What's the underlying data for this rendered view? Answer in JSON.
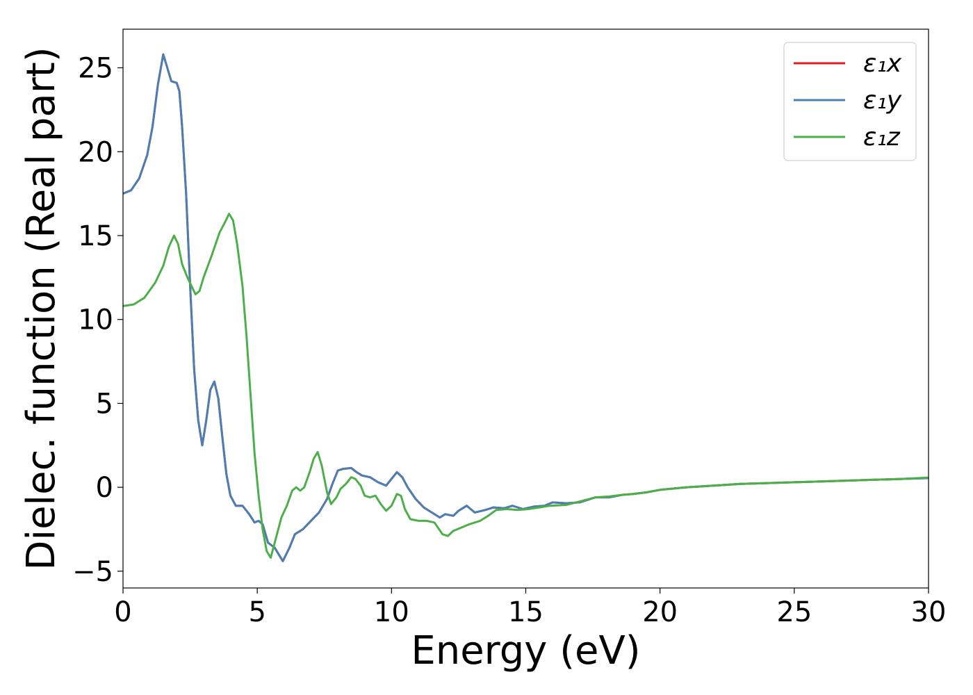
{
  "chart_data": {
    "type": "line",
    "title": "",
    "xlabel": "Energy (eV)",
    "ylabel": "Dielec. function (Real part)",
    "xlim": [
      0,
      30
    ],
    "ylim": [
      -6,
      27.3
    ],
    "xticks": [
      0,
      5,
      10,
      15,
      20,
      25,
      30
    ],
    "yticks": [
      -5,
      0,
      5,
      10,
      15,
      20,
      25
    ],
    "xtick_labels": [
      "0",
      "5",
      "10",
      "15",
      "20",
      "25",
      "30"
    ],
    "ytick_labels": [
      "−5",
      "0",
      "5",
      "10",
      "15",
      "20",
      "25"
    ],
    "grid": false,
    "legend_position": "top-right",
    "series": [
      {
        "name": "ε₁x",
        "color": "#e41a1c",
        "points": [
          [
            0,
            17.5
          ],
          [
            0.3,
            17.7
          ],
          [
            0.6,
            18.4
          ],
          [
            0.9,
            19.8
          ],
          [
            1.1,
            21.5
          ],
          [
            1.3,
            24.0
          ],
          [
            1.5,
            25.8
          ],
          [
            1.65,
            25.0
          ],
          [
            1.8,
            24.2
          ],
          [
            2.0,
            24.1
          ],
          [
            2.1,
            23.6
          ],
          [
            2.2,
            21.5
          ],
          [
            2.35,
            17.5
          ],
          [
            2.5,
            12.0
          ],
          [
            2.65,
            7.0
          ],
          [
            2.8,
            4.0
          ],
          [
            2.95,
            2.5
          ],
          [
            3.1,
            4.0
          ],
          [
            3.25,
            5.8
          ],
          [
            3.4,
            6.3
          ],
          [
            3.55,
            5.3
          ],
          [
            3.7,
            3.0
          ],
          [
            3.85,
            0.8
          ],
          [
            4.0,
            -0.5
          ],
          [
            4.2,
            -1.1
          ],
          [
            4.45,
            -1.1
          ],
          [
            4.7,
            -1.6
          ],
          [
            4.9,
            -2.1
          ],
          [
            5.05,
            -2.0
          ],
          [
            5.2,
            -2.2
          ],
          [
            5.4,
            -3.3
          ],
          [
            5.65,
            -3.6
          ],
          [
            5.95,
            -4.4
          ],
          [
            6.2,
            -3.6
          ],
          [
            6.4,
            -2.8
          ],
          [
            6.7,
            -2.5
          ],
          [
            7.0,
            -2.0
          ],
          [
            7.3,
            -1.5
          ],
          [
            7.6,
            -0.7
          ],
          [
            7.8,
            0.2
          ],
          [
            8.0,
            1.0
          ],
          [
            8.2,
            1.1
          ],
          [
            8.5,
            1.15
          ],
          [
            8.7,
            0.9
          ],
          [
            8.9,
            0.7
          ],
          [
            9.2,
            0.6
          ],
          [
            9.5,
            0.3
          ],
          [
            9.8,
            0.1
          ],
          [
            10.0,
            0.5
          ],
          [
            10.2,
            0.9
          ],
          [
            10.4,
            0.6
          ],
          [
            10.6,
            0.0
          ],
          [
            10.9,
            -0.7
          ],
          [
            11.2,
            -1.2
          ],
          [
            11.5,
            -1.5
          ],
          [
            11.8,
            -1.8
          ],
          [
            12.0,
            -1.6
          ],
          [
            12.3,
            -1.7
          ],
          [
            12.5,
            -1.4
          ],
          [
            12.8,
            -1.1
          ],
          [
            13.1,
            -1.5
          ],
          [
            13.5,
            -1.35
          ],
          [
            13.8,
            -1.2
          ],
          [
            14.2,
            -1.25
          ],
          [
            14.5,
            -1.1
          ],
          [
            14.9,
            -1.3
          ],
          [
            15.3,
            -1.15
          ],
          [
            15.7,
            -1.1
          ],
          [
            16.0,
            -0.9
          ],
          [
            16.5,
            -0.95
          ],
          [
            17.0,
            -0.9
          ],
          [
            17.6,
            -0.6
          ],
          [
            18.1,
            -0.6
          ],
          [
            18.6,
            -0.45
          ],
          [
            19.0,
            -0.4
          ],
          [
            19.5,
            -0.3
          ],
          [
            20.0,
            -0.15
          ],
          [
            21.0,
            0.0
          ],
          [
            22.0,
            0.1
          ],
          [
            23.0,
            0.2
          ],
          [
            24.0,
            0.25
          ],
          [
            25.0,
            0.3
          ],
          [
            26.0,
            0.35
          ],
          [
            27.0,
            0.4
          ],
          [
            28.0,
            0.45
          ],
          [
            29.0,
            0.5
          ],
          [
            30.0,
            0.55
          ]
        ]
      },
      {
        "name": "ε₁y",
        "color": "#4a7fb5",
        "points": [
          [
            0,
            17.5
          ],
          [
            0.3,
            17.7
          ],
          [
            0.6,
            18.4
          ],
          [
            0.9,
            19.8
          ],
          [
            1.1,
            21.5
          ],
          [
            1.3,
            24.0
          ],
          [
            1.5,
            25.8
          ],
          [
            1.65,
            25.0
          ],
          [
            1.8,
            24.2
          ],
          [
            2.0,
            24.1
          ],
          [
            2.1,
            23.6
          ],
          [
            2.2,
            21.5
          ],
          [
            2.35,
            17.5
          ],
          [
            2.5,
            12.0
          ],
          [
            2.65,
            7.0
          ],
          [
            2.8,
            4.0
          ],
          [
            2.95,
            2.5
          ],
          [
            3.1,
            4.0
          ],
          [
            3.25,
            5.8
          ],
          [
            3.4,
            6.3
          ],
          [
            3.55,
            5.3
          ],
          [
            3.7,
            3.0
          ],
          [
            3.85,
            0.8
          ],
          [
            4.0,
            -0.5
          ],
          [
            4.2,
            -1.1
          ],
          [
            4.45,
            -1.1
          ],
          [
            4.7,
            -1.6
          ],
          [
            4.9,
            -2.1
          ],
          [
            5.05,
            -2.0
          ],
          [
            5.2,
            -2.2
          ],
          [
            5.4,
            -3.3
          ],
          [
            5.65,
            -3.6
          ],
          [
            5.95,
            -4.4
          ],
          [
            6.2,
            -3.6
          ],
          [
            6.4,
            -2.8
          ],
          [
            6.7,
            -2.5
          ],
          [
            7.0,
            -2.0
          ],
          [
            7.3,
            -1.5
          ],
          [
            7.6,
            -0.7
          ],
          [
            7.8,
            0.2
          ],
          [
            8.0,
            1.0
          ],
          [
            8.2,
            1.1
          ],
          [
            8.5,
            1.15
          ],
          [
            8.7,
            0.9
          ],
          [
            8.9,
            0.7
          ],
          [
            9.2,
            0.6
          ],
          [
            9.5,
            0.3
          ],
          [
            9.8,
            0.1
          ],
          [
            10.0,
            0.5
          ],
          [
            10.2,
            0.9
          ],
          [
            10.4,
            0.6
          ],
          [
            10.6,
            0.0
          ],
          [
            10.9,
            -0.7
          ],
          [
            11.2,
            -1.2
          ],
          [
            11.5,
            -1.5
          ],
          [
            11.8,
            -1.8
          ],
          [
            12.0,
            -1.6
          ],
          [
            12.3,
            -1.7
          ],
          [
            12.5,
            -1.4
          ],
          [
            12.8,
            -1.1
          ],
          [
            13.1,
            -1.5
          ],
          [
            13.5,
            -1.35
          ],
          [
            13.8,
            -1.2
          ],
          [
            14.2,
            -1.25
          ],
          [
            14.5,
            -1.1
          ],
          [
            14.9,
            -1.3
          ],
          [
            15.3,
            -1.15
          ],
          [
            15.7,
            -1.1
          ],
          [
            16.0,
            -0.9
          ],
          [
            16.5,
            -0.95
          ],
          [
            17.0,
            -0.9
          ],
          [
            17.6,
            -0.6
          ],
          [
            18.1,
            -0.6
          ],
          [
            18.6,
            -0.45
          ],
          [
            19.0,
            -0.4
          ],
          [
            19.5,
            -0.3
          ],
          [
            20.0,
            -0.15
          ],
          [
            21.0,
            0.0
          ],
          [
            22.0,
            0.1
          ],
          [
            23.0,
            0.2
          ],
          [
            24.0,
            0.25
          ],
          [
            25.0,
            0.3
          ],
          [
            26.0,
            0.35
          ],
          [
            27.0,
            0.4
          ],
          [
            28.0,
            0.45
          ],
          [
            29.0,
            0.5
          ],
          [
            30.0,
            0.55
          ]
        ]
      },
      {
        "name": "ε₁z",
        "color": "#4daf4a",
        "points": [
          [
            0,
            10.8
          ],
          [
            0.4,
            10.9
          ],
          [
            0.8,
            11.3
          ],
          [
            1.2,
            12.2
          ],
          [
            1.5,
            13.2
          ],
          [
            1.7,
            14.3
          ],
          [
            1.9,
            15.0
          ],
          [
            2.05,
            14.5
          ],
          [
            2.2,
            13.3
          ],
          [
            2.4,
            12.5
          ],
          [
            2.55,
            12.0
          ],
          [
            2.7,
            11.5
          ],
          [
            2.85,
            11.7
          ],
          [
            3.0,
            12.5
          ],
          [
            3.3,
            13.8
          ],
          [
            3.6,
            15.2
          ],
          [
            3.8,
            15.8
          ],
          [
            3.95,
            16.3
          ],
          [
            4.1,
            15.9
          ],
          [
            4.25,
            14.5
          ],
          [
            4.45,
            12.0
          ],
          [
            4.6,
            9.0
          ],
          [
            4.75,
            5.5
          ],
          [
            4.9,
            2.0
          ],
          [
            5.05,
            -0.5
          ],
          [
            5.2,
            -2.5
          ],
          [
            5.35,
            -3.8
          ],
          [
            5.5,
            -4.2
          ],
          [
            5.7,
            -3.0
          ],
          [
            5.9,
            -1.8
          ],
          [
            6.1,
            -1.1
          ],
          [
            6.3,
            -0.2
          ],
          [
            6.45,
            0.0
          ],
          [
            6.6,
            -0.2
          ],
          [
            6.75,
            0.0
          ],
          [
            6.95,
            0.9
          ],
          [
            7.1,
            1.7
          ],
          [
            7.25,
            2.1
          ],
          [
            7.4,
            1.3
          ],
          [
            7.6,
            -0.3
          ],
          [
            7.75,
            -1.0
          ],
          [
            7.95,
            -0.6
          ],
          [
            8.1,
            -0.1
          ],
          [
            8.3,
            0.2
          ],
          [
            8.5,
            0.6
          ],
          [
            8.65,
            0.5
          ],
          [
            8.85,
            0.1
          ],
          [
            9.0,
            -0.5
          ],
          [
            9.2,
            -0.6
          ],
          [
            9.4,
            -0.5
          ],
          [
            9.6,
            -1.0
          ],
          [
            9.8,
            -1.4
          ],
          [
            10.0,
            -1.1
          ],
          [
            10.2,
            -0.4
          ],
          [
            10.35,
            -0.5
          ],
          [
            10.5,
            -1.3
          ],
          [
            10.7,
            -1.9
          ],
          [
            11.0,
            -2.0
          ],
          [
            11.3,
            -2.0
          ],
          [
            11.6,
            -2.1
          ],
          [
            11.9,
            -2.8
          ],
          [
            12.1,
            -2.9
          ],
          [
            12.3,
            -2.6
          ],
          [
            12.6,
            -2.4
          ],
          [
            12.9,
            -2.2
          ],
          [
            13.3,
            -2.0
          ],
          [
            13.6,
            -1.7
          ],
          [
            13.9,
            -1.35
          ],
          [
            14.3,
            -1.3
          ],
          [
            14.7,
            -1.35
          ],
          [
            15.1,
            -1.3
          ],
          [
            15.5,
            -1.2
          ],
          [
            15.9,
            -1.1
          ],
          [
            16.5,
            -1.05
          ],
          [
            17.0,
            -0.85
          ],
          [
            17.6,
            -0.6
          ],
          [
            18.1,
            -0.55
          ],
          [
            18.6,
            -0.45
          ],
          [
            19.0,
            -0.4
          ],
          [
            19.5,
            -0.3
          ],
          [
            20.0,
            -0.15
          ],
          [
            21.0,
            0.0
          ],
          [
            22.0,
            0.1
          ],
          [
            23.0,
            0.2
          ],
          [
            24.0,
            0.25
          ],
          [
            25.0,
            0.3
          ],
          [
            26.0,
            0.35
          ],
          [
            27.0,
            0.4
          ],
          [
            28.0,
            0.45
          ],
          [
            29.0,
            0.5
          ],
          [
            30.0,
            0.58
          ]
        ]
      }
    ]
  }
}
